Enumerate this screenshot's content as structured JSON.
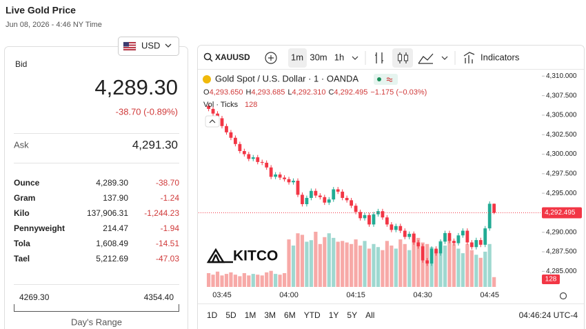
{
  "header": {
    "title": "Live Gold Price",
    "timestamp": "Jun 08, 2026 - 4:46 NY Time",
    "currency": "USD"
  },
  "quote": {
    "bid_label": "Bid",
    "bid": "4,289.30",
    "change": "-38.70 (-0.89%)",
    "ask_label": "Ask",
    "ask": "4,291.30"
  },
  "units": {
    "rows": [
      [
        "Ounce",
        "4,289.30",
        "-38.70"
      ],
      [
        "Gram",
        "137.90",
        "-1.24"
      ],
      [
        "Kilo",
        "137,906.31",
        "-1,244.23"
      ],
      [
        "Pennyweight",
        "214.47",
        "-1.94"
      ],
      [
        "Tola",
        "1,608.49",
        "-14.51"
      ],
      [
        "Tael",
        "5,212.69",
        "-47.03"
      ]
    ]
  },
  "range": {
    "low": "4269.30",
    "high": "4354.40",
    "label": "Day's Range"
  },
  "toolbar": {
    "symbol": "XAUUSD",
    "intervals": [
      "1m",
      "30m",
      "1h"
    ],
    "indicators": "Indicators"
  },
  "legend": {
    "title": "Gold Spot / U.S. Dollar · 1 · OANDA",
    "ohlc": [
      {
        "label": "O",
        "value": "4,293.650"
      },
      {
        "label": "H",
        "value": "4,293.685"
      },
      {
        "label": "L",
        "value": "4,292.310"
      },
      {
        "label": "C",
        "value": "4,292.495"
      }
    ],
    "change": "−1.175 (−0.03%)",
    "volume_label": "Vol · Ticks",
    "volume": "128"
  },
  "chart_data": {
    "type": "candlestick",
    "x": [
      null,
      null,
      null,
      "03:45",
      null,
      null,
      null,
      null,
      null,
      null,
      null,
      null,
      null,
      null,
      null,
      null,
      null,
      null,
      "04:00",
      null,
      null,
      null,
      null,
      null,
      null,
      null,
      null,
      null,
      null,
      null,
      null,
      null,
      null,
      "04:15",
      null,
      null,
      null,
      null,
      null,
      null,
      null,
      null,
      null,
      null,
      null,
      null,
      null,
      null,
      "04:30",
      null,
      null,
      null,
      null,
      null,
      null,
      null,
      null,
      null,
      null,
      null,
      null,
      null,
      null,
      "04:45",
      null
    ],
    "open": [
      4306.2,
      4305.8,
      4305.2,
      4304.6,
      4303.6,
      4302.8,
      4302.1,
      4301.3,
      4300.4,
      4300.0,
      4299.4,
      4299.6,
      4299.0,
      4298.9,
      4298.3,
      4297.1,
      4297.4,
      4297.0,
      4296.8,
      4296.4,
      4296.6,
      4294.8,
      4293.6,
      4294.4,
      4295.3,
      4294.7,
      4294.5,
      4293.8,
      4294.2,
      4295.5,
      4295.2,
      4294.4,
      4294.1,
      4293.4,
      4292.6,
      4291.8,
      4292.2,
      4291.0,
      4292.3,
      4292.7,
      4291.9,
      4291.0,
      4290.3,
      4290.8,
      4290.2,
      4289.4,
      4289.8,
      4288.7,
      4288.2,
      4286.4,
      4286.0,
      4287.9,
      4287.3,
      4288.8,
      4289.9,
      4288.9,
      4288.6,
      4289.6,
      4290.2,
      4288.7,
      4288.1,
      4289.0,
      4288.4,
      4290.5,
      4293.65
    ],
    "high": [
      4306.5,
      4306.1,
      4305.5,
      4304.9,
      4303.9,
      4303.1,
      4302.4,
      4301.6,
      4300.7,
      4300.3,
      4299.9,
      4299.9,
      4299.3,
      4299.2,
      4298.6,
      4297.7,
      4297.7,
      4297.3,
      4297.1,
      4296.9,
      4296.9,
      4295.1,
      4294.7,
      4295.6,
      4295.6,
      4295.0,
      4294.8,
      4294.5,
      4295.8,
      4295.8,
      4295.5,
      4294.7,
      4294.4,
      4293.7,
      4292.9,
      4292.5,
      4292.5,
      4292.6,
      4293.0,
      4293.0,
      4292.2,
      4291.3,
      4291.1,
      4291.1,
      4290.5,
      4290.1,
      4290.1,
      4289.0,
      4288.5,
      4286.7,
      4288.2,
      4288.2,
      4289.1,
      4290.2,
      4290.2,
      4289.2,
      4289.9,
      4290.5,
      4290.5,
      4289.0,
      4289.3,
      4289.3,
      4290.8,
      4293.95,
      4293.685
    ],
    "low": [
      4305.5,
      4304.9,
      4304.3,
      4303.3,
      4302.5,
      4301.8,
      4301.0,
      4300.1,
      4299.7,
      4299.1,
      4299.1,
      4298.7,
      4298.6,
      4298.0,
      4296.8,
      4296.8,
      4296.7,
      4296.5,
      4296.1,
      4296.1,
      4294.5,
      4293.3,
      4293.3,
      4294.1,
      4294.4,
      4294.2,
      4293.5,
      4293.5,
      4293.9,
      4294.9,
      4294.1,
      4293.8,
      4293.1,
      4292.3,
      4291.5,
      4291.5,
      4290.7,
      4290.7,
      4292.0,
      4291.6,
      4290.7,
      4290.0,
      4290.0,
      4289.9,
      4289.1,
      4289.1,
      4288.4,
      4287.9,
      4286.1,
      4285.7,
      4285.7,
      4287.0,
      4287.0,
      4288.5,
      4288.6,
      4288.3,
      4288.3,
      4289.3,
      4288.4,
      4287.8,
      4287.8,
      4288.1,
      4288.1,
      4290.2,
      4292.31
    ],
    "close": [
      4305.8,
      4305.2,
      4304.6,
      4303.6,
      4302.8,
      4302.1,
      4301.3,
      4300.4,
      4300.0,
      4299.4,
      4299.6,
      4299.0,
      4298.9,
      4298.3,
      4297.1,
      4297.4,
      4297.0,
      4296.8,
      4296.4,
      4296.6,
      4294.8,
      4293.6,
      4294.4,
      4295.3,
      4294.7,
      4294.5,
      4293.8,
      4294.2,
      4295.5,
      4295.2,
      4294.4,
      4294.1,
      4293.4,
      4292.6,
      4291.8,
      4292.2,
      4291.0,
      4292.3,
      4292.7,
      4291.9,
      4291.0,
      4290.3,
      4290.8,
      4290.2,
      4289.4,
      4289.8,
      4288.7,
      4288.2,
      4286.4,
      4286.0,
      4287.9,
      4287.3,
      4288.8,
      4289.9,
      4288.9,
      4288.6,
      4289.6,
      4290.2,
      4288.7,
      4288.1,
      4289.0,
      4288.4,
      4290.5,
      4293.65,
      4292.495
    ],
    "volume": [
      180,
      160,
      200,
      150,
      170,
      190,
      160,
      140,
      180,
      150,
      170,
      160,
      150,
      190,
      210,
      170,
      160,
      180,
      620,
      540,
      700,
      680,
      590,
      610,
      720,
      560,
      650,
      700,
      640,
      590,
      600,
      580,
      560,
      620,
      540,
      600,
      500,
      560,
      520,
      480,
      600,
      540,
      500,
      620,
      560,
      480,
      700,
      640,
      580,
      560,
      520,
      480,
      600,
      540,
      620,
      560,
      500,
      440,
      560,
      480,
      420,
      380,
      460,
      560,
      128
    ],
    "up_color": "#22ab94",
    "down_color": "#f23645",
    "up_volume_color": "#9fd8d0",
    "down_volume_color": "#f7a9a7",
    "ylim": [
      4283,
      4311
    ],
    "yticks": [
      {
        "value": 4310,
        "label": "4,310.000"
      },
      {
        "value": 4307.5,
        "label": "4,307.500"
      },
      {
        "value": 4305,
        "label": "4,305.000"
      },
      {
        "value": 4302.5,
        "label": "4,302.500"
      },
      {
        "value": 4300,
        "label": "4,300.000"
      },
      {
        "value": 4297.5,
        "label": "4,297.500"
      },
      {
        "value": 4295,
        "label": "4,295.000"
      },
      {
        "value": 4292.5,
        "label": "4,292.500"
      },
      {
        "value": 4290,
        "label": "4,290.000"
      },
      {
        "value": 4287.5,
        "label": "4,287.500"
      },
      {
        "value": 4285,
        "label": "4,285.000"
      }
    ],
    "last_price_label": "4,292.495",
    "last_volume_label": "128"
  },
  "logo": "KITCO",
  "ranges": [
    "1D",
    "5D",
    "1M",
    "3M",
    "6M",
    "YTD",
    "1Y",
    "5Y",
    "All"
  ],
  "clock": "04:46:24 UTC-4"
}
